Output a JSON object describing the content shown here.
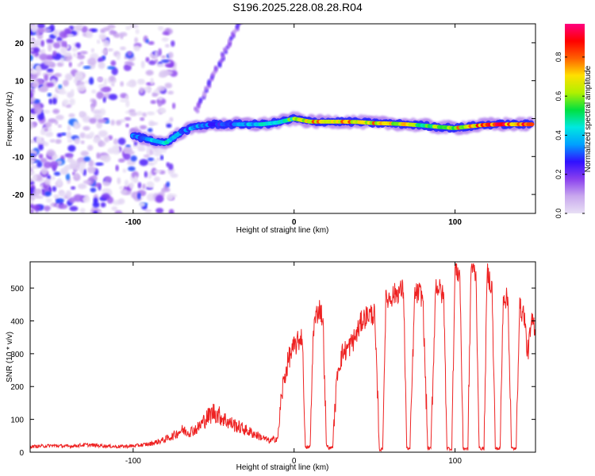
{
  "page_title": "S196.2025.228.08.28.R04",
  "chart_data": [
    {
      "type": "heatmap",
      "xlabel": "Height of straight line (km)",
      "ylabel": "Frequency (Hz)",
      "xlim": [
        -164,
        150
      ],
      "ylim": [
        -25,
        25
      ],
      "xticks": [
        -100,
        0,
        100
      ],
      "yticks": [
        -20,
        -10,
        0,
        10,
        20
      ],
      "colorbar": {
        "label": "Normalized spectral amplitude",
        "range": [
          0,
          0.97
        ],
        "ticks": [
          "0.0",
          "0.2",
          "0.4",
          "0.6",
          "0.8"
        ],
        "tick_values": [
          0,
          0.2,
          0.4,
          0.6,
          0.8
        ],
        "colors": [
          "#e8e0f5",
          "#c9a8ee",
          "#8a40ee",
          "#3010ff",
          "#00a0ff",
          "#00e8e0",
          "#00e040",
          "#b0f000",
          "#ffe000",
          "#ff6000",
          "#ff0000",
          "#ff0080"
        ]
      },
      "ridge": {
        "description_free": true,
        "x": [
          -100,
          -90,
          -80,
          -75,
          -70,
          -60,
          -50,
          -40,
          -30,
          -20,
          -10,
          0,
          10,
          20,
          30,
          40,
          50,
          60,
          70,
          80,
          90,
          100,
          110,
          120,
          130,
          140,
          148
        ],
        "y": [
          -4.5,
          -5.5,
          -6.5,
          -5,
          -3.5,
          -2,
          -1.5,
          -1.5,
          -1.5,
          -1.5,
          -1,
          0,
          -0.8,
          -0.8,
          -0.8,
          -0.9,
          -1.2,
          -1.3,
          -1.5,
          -1.8,
          -2.2,
          -2.5,
          -2,
          -1.6,
          -1.5,
          -1.5,
          -1.5
        ],
        "amplitude": [
          0.35,
          0.4,
          0.45,
          0.4,
          0.35,
          0.4,
          0.3,
          0.3,
          0.4,
          0.45,
          0.5,
          0.6,
          0.75,
          0.8,
          0.8,
          0.75,
          0.75,
          0.7,
          0.7,
          0.6,
          0.65,
          0.7,
          0.8,
          0.85,
          0.85,
          0.85,
          0.8
        ]
      }
    },
    {
      "type": "line",
      "xlabel": "Height of straight line (km)",
      "ylabel": "SNR (10 * v/v)",
      "xlim": [
        -164,
        150
      ],
      "ylim": [
        0,
        580
      ],
      "xticks": [
        -100,
        0,
        100
      ],
      "yticks": [
        0,
        100,
        200,
        300,
        400,
        500
      ],
      "color": "#ee2222",
      "series": [
        {
          "name": "SNR",
          "x": [
            -164,
            -150,
            -140,
            -130,
            -120,
            -110,
            -100,
            -90,
            -85,
            -80,
            -75,
            -70,
            -65,
            -60,
            -55,
            -50,
            -45,
            -40,
            -35,
            -30,
            -25,
            -20,
            -15,
            -10,
            -7,
            -5,
            -3,
            0,
            3,
            5,
            7,
            10,
            12,
            14,
            16,
            18,
            20,
            22,
            24,
            27,
            30,
            34,
            38,
            42,
            46,
            50,
            53,
            55,
            57,
            59,
            62,
            65,
            68,
            70,
            72,
            75,
            78,
            80,
            83,
            85,
            88,
            90,
            93,
            95,
            98,
            100,
            103,
            105,
            108,
            110,
            113,
            115,
            118,
            120,
            123,
            125,
            128,
            130,
            133,
            135,
            138,
            140,
            143,
            145,
            148,
            150
          ],
          "y": [
            15,
            18,
            16,
            20,
            18,
            15,
            17,
            22,
            28,
            35,
            45,
            60,
            55,
            65,
            90,
            110,
            95,
            80,
            70,
            60,
            50,
            40,
            30,
            40,
            200,
            250,
            290,
            320,
            340,
            360,
            10,
            15,
            380,
            420,
            440,
            400,
            20,
            10,
            15,
            250,
            300,
            320,
            350,
            400,
            420,
            420,
            5,
            8,
            460,
            470,
            480,
            490,
            495,
            10,
            8,
            480,
            485,
            470,
            10,
            8,
            510,
            500,
            470,
            10,
            8,
            560,
            540,
            10,
            8,
            570,
            540,
            10,
            8,
            550,
            500,
            10,
            8,
            480,
            460,
            10,
            8,
            440,
            420,
            300,
            400,
            380
          ]
        }
      ]
    }
  ]
}
